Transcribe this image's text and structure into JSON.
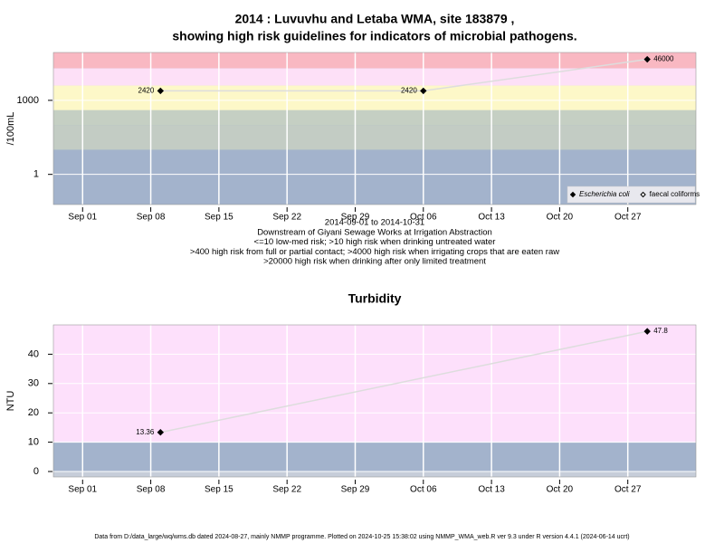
{
  "chart_data": [
    {
      "type": "line",
      "title": [
        "2014 : Luvuvhu and Letaba WMA, site 183879 ,",
        "showing high risk guidelines for indicators of microbial pathogens."
      ],
      "subtitle": [
        "2014-09-01 to 2014-10-31",
        "Downstream of Giyani Sewage Works at Irrigation Abstraction",
        "<=10 low-med risk; >10 high risk when drinking untreated water",
        ">400 high risk from full or partial contact; >4000 high risk when irrigating crops that are eaten raw",
        ">20000 high risk when drinking after only limited treatment"
      ],
      "y_label": "/100mL",
      "log_y": true,
      "x": [
        "2014-09-09",
        "2014-10-06",
        "2014-10-29"
      ],
      "xlim": [
        "2014-08-29",
        "2014-11-03"
      ],
      "xticks": [
        {
          "value": "2014-09-01",
          "label": "Sep 01"
        },
        {
          "value": "2014-09-08",
          "label": "Sep 08"
        },
        {
          "value": "2014-09-15",
          "label": "Sep 15"
        },
        {
          "value": "2014-09-22",
          "label": "Sep 22"
        },
        {
          "value": "2014-09-29",
          "label": "Sep 29"
        },
        {
          "value": "2014-10-06",
          "label": "Oct 06"
        },
        {
          "value": "2014-10-13",
          "label": "Oct 13"
        },
        {
          "value": "2014-10-20",
          "label": "Oct 20"
        },
        {
          "value": "2014-10-27",
          "label": "Oct 27"
        }
      ],
      "ylim": [
        0.06,
        87000
      ],
      "yticks": [
        1,
        1000
      ],
      "grid": true,
      "background": "#a3b3cc",
      "bands": [
        {
          "from": 10,
          "to": 100,
          "color": "#c3ccc4"
        },
        {
          "from": 100,
          "to": 400,
          "color": "#c5cfc3"
        },
        {
          "from": 400,
          "to": 4000,
          "color": "#fdf8c8"
        },
        {
          "from": 4000,
          "to": 20000,
          "color": "#fde0f7"
        },
        {
          "from": 20000,
          "to": 87000,
          "color": "#f9b8c2"
        }
      ],
      "line_color": "#dddddd",
      "legend": "bottom-right",
      "series": [
        {
          "name": "Escherichia coli",
          "color": "#000000",
          "marker": "filled",
          "values": [
            2420,
            2420,
            46000
          ]
        },
        {
          "name": "faecal coliforms",
          "color": "#000000",
          "marker": "open",
          "values": [
            null,
            null,
            null
          ]
        }
      ]
    },
    {
      "type": "line",
      "title": [
        "Turbidity"
      ],
      "y_label": "NTU",
      "log_y": false,
      "x": [
        "2014-09-09",
        "2014-10-29"
      ],
      "xlim": [
        "2014-08-29",
        "2014-11-03"
      ],
      "xticks": [
        {
          "value": "2014-09-01",
          "label": "Sep 01"
        },
        {
          "value": "2014-09-08",
          "label": "Sep 08"
        },
        {
          "value": "2014-09-15",
          "label": "Sep 15"
        },
        {
          "value": "2014-09-22",
          "label": "Sep 22"
        },
        {
          "value": "2014-09-29",
          "label": "Sep 29"
        },
        {
          "value": "2014-10-06",
          "label": "Oct 06"
        },
        {
          "value": "2014-10-13",
          "label": "Oct 13"
        },
        {
          "value": "2014-10-20",
          "label": "Oct 20"
        },
        {
          "value": "2014-10-27",
          "label": "Oct 27"
        }
      ],
      "ylim": [
        -1.85,
        50
      ],
      "yticks": [
        0,
        10,
        20,
        30,
        40
      ],
      "grid": true,
      "background": "#c6cdd9",
      "bands": [
        {
          "from": 0,
          "to": 10,
          "color": "#a3b3cc"
        },
        {
          "from": 10,
          "to": 50,
          "color": "#fde0fb"
        }
      ],
      "line_color": "#dddddd",
      "series": [
        {
          "name": "Turbidity",
          "color": "#000000",
          "marker": "filled",
          "values": [
            13.36,
            47.8
          ]
        }
      ]
    }
  ],
  "footer": "Data from D:/data_large/wq/wms.db dated 2024-08-27, mainly NMMP programme. Plotted on 2024-10-25 15:38:02 using NMMP_WMA_web.R ver 9.3 under R version 4.4.1 (2024-06-14 ucrt)"
}
